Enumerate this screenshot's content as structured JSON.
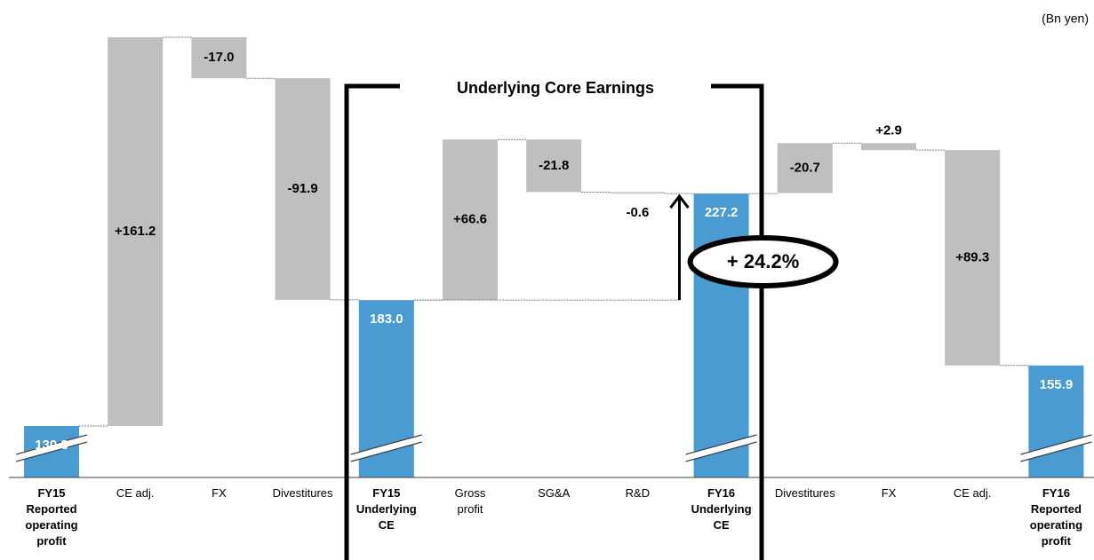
{
  "unit": "(Bn yen)",
  "chart_data": {
    "type": "waterfall",
    "annotation_title": "Underlying Core Earnings",
    "annotation_growth": "+ 24.2%",
    "categories": [
      "FY15\nReported\noperating\nprofit",
      "CE adj.",
      "FX",
      "Divestitures",
      "FY15\nUnderlying\nCE",
      "Gross\nprofit",
      "SG&A",
      "R&D",
      "FY16\nUnderlying\nCE",
      "Divestitures",
      "FX",
      "CE adj.",
      "FY16\nReported\noperating\nprofit"
    ],
    "measures": [
      "total",
      "relative",
      "relative",
      "relative",
      "total",
      "relative",
      "relative",
      "relative",
      "total",
      "reverse",
      "reverse",
      "reverse",
      "total"
    ],
    "values": [
      130.8,
      161.2,
      -17.0,
      -91.9,
      183.0,
      66.6,
      -21.8,
      -0.6,
      227.2,
      -20.7,
      2.9,
      89.3,
      155.9
    ],
    "value_labels": [
      "130.8",
      "+161.2",
      "-17.0",
      "-91.9",
      "183.0",
      "+66.6",
      "-21.8",
      "-0.6",
      "227.2",
      "-20.7",
      "+2.9",
      "+89.3",
      "155.9"
    ],
    "colors": {
      "total": "#4a9bd1",
      "relative": "#bfbfbf"
    }
  }
}
